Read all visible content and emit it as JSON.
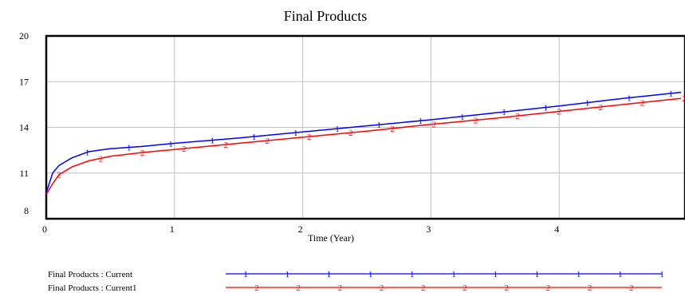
{
  "chart_data": {
    "type": "line",
    "title": "Final Products",
    "xlabel": "Time (Year)",
    "ylabel": "",
    "xlim": [
      0,
      5
    ],
    "ylim": [
      8,
      20
    ],
    "x_ticks": [
      "0",
      "1",
      "2",
      "3",
      "4"
    ],
    "y_ticks": [
      "8",
      "11",
      "14",
      "17",
      "20"
    ],
    "grid": true,
    "legend_placement": "bottom",
    "x": [
      0,
      0.05,
      0.1,
      0.2,
      0.33,
      0.5,
      0.75,
      1,
      1.5,
      2,
      2.5,
      3,
      3.5,
      4,
      4.5,
      4.95
    ],
    "series": [
      {
        "name": "Final Products : Current",
        "marker": "1",
        "color": "#0000ff",
        "values": [
          9.7,
          11.0,
          11.5,
          12.0,
          12.4,
          12.6,
          12.75,
          12.95,
          13.3,
          13.7,
          14.1,
          14.5,
          14.95,
          15.4,
          15.9,
          16.3
        ]
      },
      {
        "name": "Final Products : Current1",
        "marker": "2",
        "color": "#ff0000",
        "values": [
          9.6,
          10.3,
          10.9,
          11.4,
          11.8,
          12.1,
          12.35,
          12.55,
          12.95,
          13.35,
          13.75,
          14.2,
          14.6,
          15.05,
          15.5,
          15.9
        ]
      }
    ]
  }
}
